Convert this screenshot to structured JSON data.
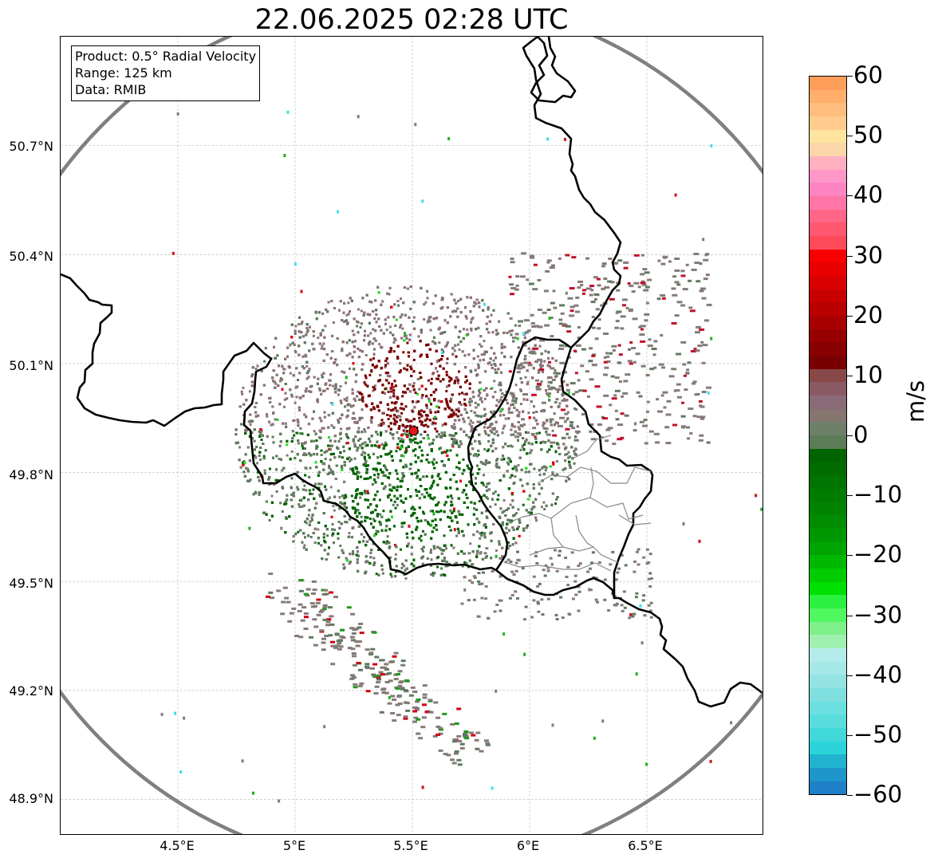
{
  "title": "22.06.2025 02:28 UTC",
  "info_box": {
    "product": "Product: 0.5° Radial Velocity",
    "range": "Range: 125 km",
    "data_source": "Data: RMIB"
  },
  "map": {
    "lon_range": [
      4.0,
      7.0
    ],
    "lat_range": [
      48.8,
      51.0
    ],
    "radar_site": {
      "lon": 5.505,
      "lat": 49.915,
      "color": "#e8141b"
    },
    "range_ring_km": 125,
    "latitude_labels": [
      "50.7°N",
      "50.4°N",
      "50.1°N",
      "49.8°N",
      "49.5°N",
      "49.2°N",
      "48.9°N"
    ],
    "longitude_labels": [
      "4.5°E",
      "5°E",
      "5.5°E",
      "6°E",
      "6.5°E"
    ],
    "colors": {
      "outbound_strong": "#7a0000",
      "outbound_weak": "#8d7078",
      "near_zero": "#857a78",
      "inbound_weak": "#5f7a5f",
      "inbound_strong": "#006400",
      "border": "#000000",
      "range_ring": "#808080"
    }
  },
  "colorbar": {
    "unit": "m/s",
    "min": -60,
    "max": 60,
    "tick_labels": [
      "60",
      "50",
      "40",
      "30",
      "20",
      "10",
      "0",
      "−10",
      "−20",
      "−30",
      "−40",
      "−50",
      "−60"
    ],
    "colors_top_to_bottom": [
      "#ff9e5a",
      "#ffae6c",
      "#ffbd7e",
      "#ffcc8e",
      "#ffe49e",
      "#fad6a8",
      "#ffb0c0",
      "#ff96c8",
      "#ff84c4",
      "#ff76a6",
      "#ff6688",
      "#ff5870",
      "#ff4a5a",
      "#f80000",
      "#e80000",
      "#d80000",
      "#c80000",
      "#b80000",
      "#a80000",
      "#980000",
      "#880000",
      "#780000",
      "#884848",
      "#8a5a64",
      "#8a6a76",
      "#877670",
      "#6e8068",
      "#5c7c58",
      "#006400",
      "#006c00",
      "#007400",
      "#007c00",
      "#008400",
      "#008c00",
      "#009800",
      "#00a400",
      "#00b800",
      "#00cc00",
      "#00e000",
      "#2cf040",
      "#50f860",
      "#7ef08a",
      "#a0f0b0",
      "#b4ecec",
      "#a6e8e8",
      "#94e4e4",
      "#80e0e0",
      "#6ce0e0",
      "#58dcdc",
      "#40d8d8",
      "#2ad4d8",
      "#20b4d0",
      "#1e96cc",
      "#1e80c8"
    ]
  }
}
